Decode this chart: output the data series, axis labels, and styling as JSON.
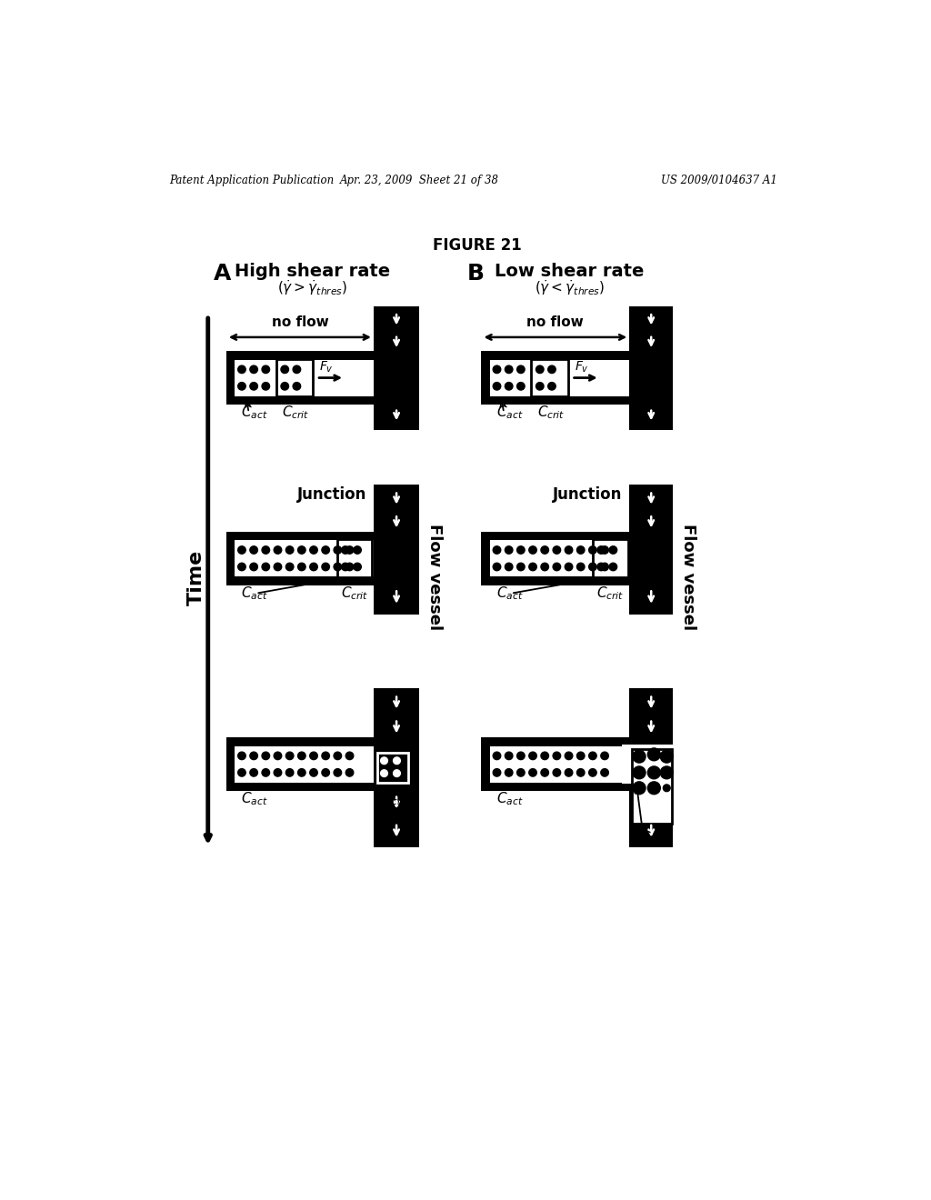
{
  "header_left": "Patent Application Publication",
  "header_mid": "Apr. 23, 2009  Sheet 21 of 38",
  "header_right": "US 2009/0104637 A1",
  "figure_label": "FIGURE 21",
  "col_A_label": "A",
  "col_B_label": "B",
  "col_A_title": "High shear rate",
  "col_A_subtitle": "($\\dot{\\gamma} > \\dot{\\gamma}_{thres}$)",
  "col_B_title": "Low shear rate",
  "col_B_subtitle": "($\\dot{\\gamma} < \\dot{\\gamma}_{thres}$)",
  "time_label": "Time",
  "flow_vessel_label": "Flow vessel",
  "bg_color": "#ffffff",
  "black": "#000000",
  "white": "#ffffff"
}
